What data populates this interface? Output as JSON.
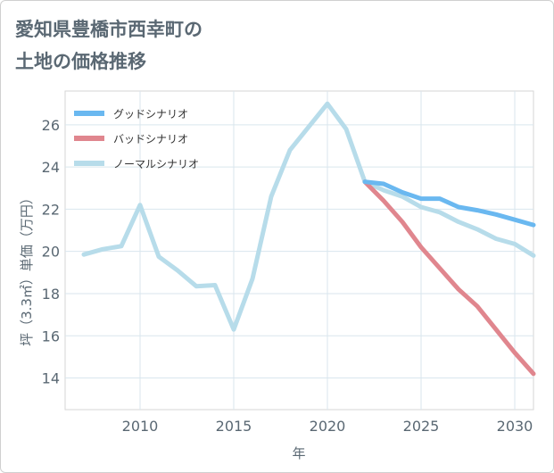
{
  "title": {
    "line1": "愛知県豊橋市西幸町の",
    "line2": "土地の価格推移"
  },
  "chart_data": {
    "type": "line",
    "xlabel": "年",
    "ylabel": "坪（3.3㎡）単価（万円）",
    "xlim": [
      2006,
      2031
    ],
    "ylim": [
      12.5,
      27.6
    ],
    "x_ticks": [
      2010,
      2015,
      2020,
      2025,
      2030
    ],
    "y_ticks": [
      14,
      16,
      18,
      20,
      22,
      24,
      26
    ],
    "x_tick_labels": [
      "2010",
      "2015",
      "2020",
      "2025",
      "2030"
    ],
    "y_tick_labels": [
      "14",
      "16",
      "18",
      "20",
      "22",
      "24",
      "26"
    ],
    "grid": true,
    "legend_position": "top-left",
    "series": [
      {
        "name": "グッドシナリオ",
        "color": "#6ab8f0",
        "x": [
          2022,
          2023,
          2024,
          2025,
          2026,
          2027,
          2028,
          2029,
          2030,
          2031
        ],
        "values": [
          23.3,
          23.2,
          22.8,
          22.5,
          22.5,
          22.1,
          21.95,
          21.75,
          21.5,
          21.25
        ]
      },
      {
        "name": "バッドシナリオ",
        "color": "#e0868e",
        "x": [
          2022,
          2023,
          2024,
          2025,
          2026,
          2027,
          2028,
          2029,
          2030,
          2031
        ],
        "values": [
          23.3,
          22.4,
          21.4,
          20.2,
          19.2,
          18.2,
          17.4,
          16.3,
          15.2,
          14.2
        ]
      },
      {
        "name": "ノーマルシナリオ",
        "color": "#b7dcea",
        "x": [
          2007,
          2008,
          2009,
          2010,
          2011,
          2012,
          2013,
          2014,
          2015,
          2016,
          2017,
          2018,
          2019,
          2020,
          2021,
          2022,
          2023,
          2024,
          2025,
          2026,
          2027,
          2028,
          2029,
          2030,
          2031
        ],
        "values": [
          19.85,
          20.1,
          20.25,
          22.2,
          19.75,
          19.1,
          18.35,
          18.4,
          16.3,
          18.7,
          22.6,
          24.8,
          25.9,
          27.0,
          25.8,
          23.3,
          22.9,
          22.6,
          22.1,
          21.85,
          21.4,
          21.05,
          20.6,
          20.35,
          19.8
        ]
      }
    ]
  }
}
